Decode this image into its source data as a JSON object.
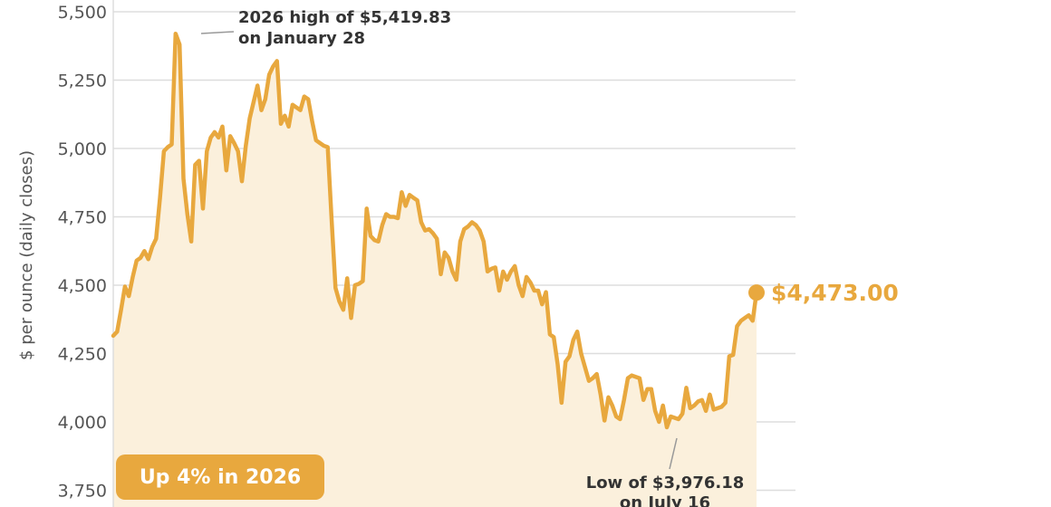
{
  "chart_data": {
    "type": "area",
    "ylabel": "$ per ounce (daily closes)",
    "ylim": [
      3750,
      5500
    ],
    "y_ticks": [
      {
        "value": 3750,
        "label": "3,750"
      },
      {
        "value": 4000,
        "label": "4,000"
      },
      {
        "value": 4250,
        "label": "4,250"
      },
      {
        "value": 4500,
        "label": "4,500"
      },
      {
        "value": 4750,
        "label": "4,750"
      },
      {
        "value": 5000,
        "label": "5,000"
      },
      {
        "value": 5250,
        "label": "5,250"
      },
      {
        "value": 5500,
        "label": "5,500"
      }
    ],
    "grid": true,
    "series": [
      {
        "values": [
          4315,
          4330,
          4410,
          4495,
          4460,
          4530,
          4590,
          4600,
          4625,
          4595,
          4640,
          4670,
          4820,
          4990,
          5005,
          5015,
          5420,
          5380,
          4890,
          4760,
          4660,
          4940,
          4955,
          4780,
          4990,
          5040,
          5060,
          5040,
          5080,
          4920,
          5045,
          5020,
          4990,
          4880,
          5010,
          5110,
          5170,
          5230,
          5140,
          5180,
          5270,
          5300,
          5320,
          5090,
          5120,
          5080,
          5160,
          5150,
          5140,
          5190,
          5180,
          5100,
          5030,
          5020,
          5010,
          5005,
          4740,
          4490,
          4440,
          4410,
          4525,
          4380,
          4500,
          4505,
          4515,
          4780,
          4680,
          4665,
          4660,
          4720,
          4760,
          4750,
          4750,
          4745,
          4840,
          4790,
          4830,
          4820,
          4810,
          4730,
          4700,
          4705,
          4690,
          4670,
          4540,
          4620,
          4600,
          4550,
          4520,
          4660,
          4705,
          4715,
          4730,
          4720,
          4700,
          4660,
          4550,
          4560,
          4565,
          4480,
          4550,
          4520,
          4550,
          4570,
          4500,
          4460,
          4530,
          4510,
          4480,
          4480,
          4430,
          4475,
          4320,
          4310,
          4210,
          4070,
          4220,
          4240,
          4300,
          4330,
          4250,
          4200,
          4150,
          4160,
          4175,
          4100,
          4005,
          4090,
          4060,
          4020,
          4010,
          4080,
          4160,
          4170,
          4165,
          4160,
          4080,
          4120,
          4120,
          4040,
          4000,
          4060,
          3980,
          4020,
          4015,
          4010,
          4030,
          4125,
          4050,
          4060,
          4075,
          4080,
          4040,
          4100,
          4045,
          4050,
          4055,
          4070,
          4240,
          4245,
          4350,
          4370,
          4380,
          4390,
          4370,
          4473
        ]
      }
    ],
    "annotations": {
      "high": {
        "lines": [
          "2026 high of $5,419.83",
          "on January 28"
        ]
      },
      "low": {
        "lines": [
          "Low of $3,976.18",
          "on July 16"
        ]
      },
      "last_value": "$4,473.00"
    },
    "badge": "Up 4% in 2026",
    "colors": {
      "line": "#E8A83E",
      "area": "#FBF0DC",
      "grid": "#DDDDDD",
      "badge": "#E8A83E",
      "text": "#333333",
      "axis_text": "#555555"
    }
  }
}
